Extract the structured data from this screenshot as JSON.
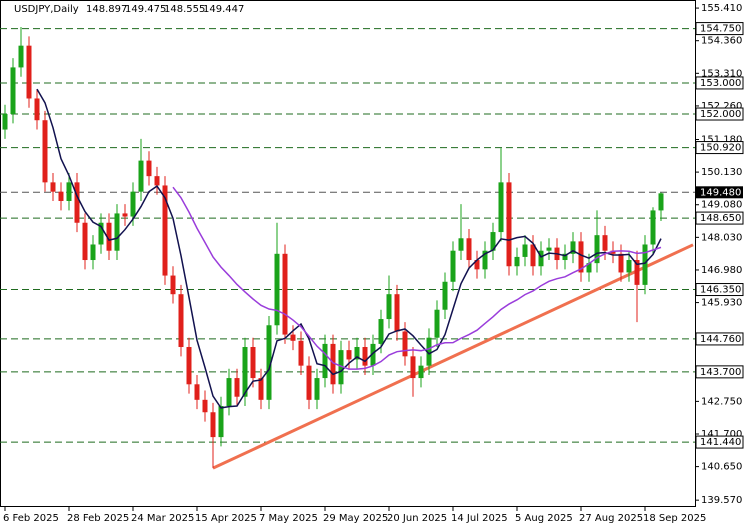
{
  "chart_data": {
    "type": "candlestick",
    "header": {
      "symbol": "USDJPY,Daily",
      "ohlc": [
        148.897,
        149.475,
        148.555,
        149.447
      ]
    },
    "categories": [
      "6 Feb 2025",
      null,
      null,
      null,
      null,
      null,
      null,
      null,
      "28 Feb 2025",
      null,
      null,
      null,
      null,
      null,
      null,
      null,
      "24 Mar 2025",
      null,
      null,
      null,
      null,
      null,
      null,
      null,
      "15 Apr 2025",
      null,
      null,
      null,
      null,
      null,
      null,
      null,
      "7 May 2025",
      null,
      null,
      null,
      null,
      null,
      null,
      null,
      "29 May 2025",
      null,
      null,
      null,
      null,
      null,
      null,
      null,
      "20 Jun 2025",
      null,
      null,
      null,
      null,
      null,
      null,
      null,
      "14 Jul 2025",
      null,
      null,
      null,
      null,
      null,
      null,
      null,
      "5 Aug 2025",
      null,
      null,
      null,
      null,
      null,
      null,
      null,
      "27 Aug 2025",
      null,
      null,
      null,
      null,
      null,
      null,
      null,
      "18 Sep 2025",
      null,
      null
    ],
    "open": [
      151.5,
      152.0,
      153.5,
      154.2,
      152.5,
      151.8,
      149.8,
      149.5,
      149.2,
      149.8,
      148.5,
      147.3,
      147.8,
      148.5,
      147.6,
      148.8,
      148.7,
      149.5,
      150.5,
      150.0,
      149.7,
      146.8,
      146.2,
      144.5,
      143.3,
      142.8,
      142.4,
      141.6,
      142.6,
      143.5,
      142.9,
      144.5,
      143.5,
      142.8,
      145.2,
      147.5,
      144.9,
      144.7,
      143.9,
      142.8,
      143.5,
      144.6,
      143.3,
      144.4,
      144.1,
      144.5,
      143.9,
      144.6,
      145.4,
      146.2,
      145.0,
      144.2,
      143.5,
      143.9,
      144.8,
      145.7,
      146.6,
      147.6,
      148.0,
      147.3,
      147.0,
      147.6,
      148.2,
      149.8,
      147.1,
      147.4,
      147.8,
      147.1,
      147.6,
      147.7,
      147.3,
      147.5,
      147.9,
      146.9,
      147.2,
      148.1,
      147.6,
      147.5,
      146.9,
      147.3,
      146.5,
      147.8,
      148.897
    ],
    "high": [
      152.3,
      153.8,
      154.8,
      154.5,
      152.8,
      152.1,
      150.1,
      149.8,
      150.1,
      150.1,
      148.8,
      148.1,
      148.8,
      148.8,
      149.1,
      149.1,
      149.8,
      151.2,
      150.8,
      150.3,
      150.0,
      147.1,
      146.5,
      144.8,
      143.6,
      143.1,
      142.7,
      142.9,
      143.8,
      143.8,
      144.8,
      144.8,
      143.8,
      145.5,
      148.5,
      147.8,
      145.2,
      145.0,
      144.2,
      143.8,
      144.9,
      144.9,
      144.7,
      144.7,
      144.8,
      144.8,
      144.9,
      145.7,
      146.8,
      146.5,
      145.3,
      144.5,
      144.2,
      145.1,
      146.0,
      146.9,
      147.9,
      149.1,
      148.3,
      147.6,
      147.9,
      148.5,
      150.9,
      150.1,
      147.7,
      148.1,
      148.1,
      147.9,
      148.0,
      148.0,
      147.8,
      148.2,
      148.2,
      147.5,
      148.9,
      148.4,
      147.9,
      147.8,
      147.6,
      147.6,
      148.1,
      149.0,
      149.475
    ],
    "low": [
      151.2,
      151.7,
      153.2,
      152.2,
      151.5,
      149.5,
      149.2,
      148.9,
      148.9,
      148.2,
      147.0,
      147.0,
      147.5,
      147.3,
      147.3,
      148.4,
      148.4,
      149.2,
      149.7,
      149.4,
      146.5,
      145.9,
      144.2,
      143.0,
      142.5,
      142.1,
      140.6,
      141.3,
      142.3,
      142.6,
      142.6,
      143.2,
      142.5,
      142.5,
      144.9,
      144.6,
      144.4,
      143.6,
      142.5,
      142.5,
      143.2,
      143.0,
      143.0,
      143.8,
      143.8,
      143.6,
      143.6,
      144.3,
      145.1,
      144.7,
      143.9,
      142.9,
      143.2,
      143.6,
      144.5,
      145.4,
      146.3,
      147.3,
      147.0,
      146.7,
      146.7,
      147.3,
      147.9,
      146.8,
      146.8,
      147.1,
      146.8,
      146.8,
      147.3,
      147.0,
      147.0,
      147.2,
      146.6,
      146.6,
      146.9,
      147.3,
      147.2,
      146.6,
      146.6,
      145.3,
      146.2,
      147.5,
      148.555
    ],
    "close": [
      152.0,
      153.5,
      154.2,
      152.5,
      151.8,
      149.8,
      149.5,
      149.2,
      149.8,
      148.5,
      147.3,
      147.8,
      148.5,
      147.6,
      148.8,
      148.7,
      149.5,
      150.5,
      150.0,
      149.7,
      146.8,
      146.2,
      144.5,
      143.3,
      142.8,
      142.4,
      141.6,
      142.6,
      143.5,
      142.9,
      144.5,
      143.5,
      142.8,
      145.2,
      147.5,
      144.9,
      144.7,
      143.9,
      142.8,
      143.5,
      144.6,
      143.3,
      144.4,
      144.1,
      144.5,
      143.9,
      144.6,
      145.4,
      146.2,
      145.0,
      144.2,
      143.5,
      143.9,
      144.8,
      145.7,
      146.6,
      147.6,
      148.0,
      147.3,
      147.0,
      147.6,
      148.2,
      149.8,
      147.1,
      147.4,
      147.8,
      147.1,
      147.6,
      147.7,
      147.3,
      147.5,
      147.9,
      146.9,
      147.2,
      148.1,
      147.6,
      147.5,
      146.9,
      147.3,
      146.5,
      147.8,
      148.897,
      149.447
    ],
    "up_color": "#1aa31a",
    "down_color": "#e0201b",
    "indicators": [
      {
        "period": 5,
        "color": "#12124f"
      },
      {
        "period": 22,
        "color": "#9a3ddb"
      }
    ],
    "trendline": {
      "from": [
        26,
        140.6
      ],
      "to": [
        86,
        147.79
      ],
      "color": "#f0704f"
    },
    "levels": [
      {
        "value": 154.75,
        "label": "154.750"
      },
      {
        "value": 153.0,
        "label": "153.000"
      },
      {
        "value": 152.0,
        "label": "152.000"
      },
      {
        "value": 150.92,
        "label": "150.920"
      },
      {
        "value": 148.65,
        "label": "148.650"
      },
      {
        "value": 146.35,
        "label": "146.350"
      },
      {
        "value": 144.76,
        "label": "144.760"
      },
      {
        "value": 143.7,
        "label": "143.700"
      },
      {
        "value": 141.44,
        "label": "141.440"
      }
    ],
    "level_color": "#1f6b1f",
    "price_line": {
      "value": 149.48,
      "label": "149.480"
    },
    "ylim": [
      139.35,
      155.67
    ],
    "yticks": [
      {
        "value": 155.41,
        "label": "155.410"
      },
      {
        "value": 154.36,
        "label": "154.360"
      },
      {
        "value": 153.31,
        "label": "153.310"
      },
      {
        "value": 152.26,
        "label": "152.260"
      },
      {
        "value": 151.18,
        "label": "151.180"
      },
      {
        "value": 150.13,
        "label": "150.130"
      },
      {
        "value": 149.08,
        "label": "149.080"
      },
      {
        "value": 148.03,
        "label": "148.030"
      },
      {
        "value": 146.98,
        "label": "146.980"
      },
      {
        "value": 145.93,
        "label": "145.930"
      },
      {
        "value": 142.75,
        "label": "142.750"
      },
      {
        "value": 141.7,
        "label": "141.700"
      },
      {
        "value": 140.65,
        "label": "140.650"
      },
      {
        "value": 139.57,
        "label": "139.570"
      }
    ]
  }
}
